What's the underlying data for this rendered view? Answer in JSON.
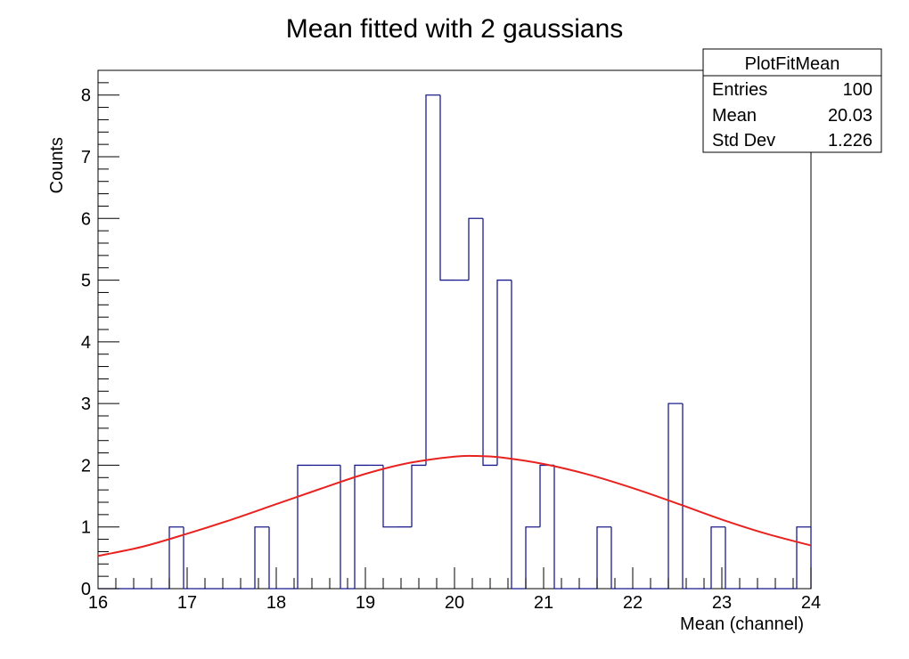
{
  "chart_data": {
    "type": "histogram",
    "title": "Mean fitted with 2 gaussians",
    "xlabel": "Mean (channel)",
    "ylabel": "Counts",
    "xlim": [
      16,
      24
    ],
    "ylim": [
      0,
      8.4
    ],
    "x_ticks": [
      "16",
      "17",
      "18",
      "19",
      "20",
      "21",
      "22",
      "23",
      "24"
    ],
    "y_ticks": [
      "0",
      "1",
      "2",
      "3",
      "4",
      "5",
      "6",
      "7",
      "8"
    ],
    "grid": false,
    "bin_edges": [
      16,
      16.16,
      16.32,
      16.48,
      16.64,
      16.8,
      16.96,
      17.12,
      17.28,
      17.44,
      17.6,
      17.76,
      17.92,
      18.08,
      18.24,
      18.4,
      18.56,
      18.72,
      18.88,
      19.04,
      19.2,
      19.36,
      19.52,
      19.68,
      19.84,
      20.0,
      20.16,
      20.32,
      20.48,
      20.64,
      20.8,
      20.96,
      21.12,
      21.28,
      21.44,
      21.6,
      21.76,
      21.92,
      22.08,
      22.24,
      22.4,
      22.56,
      22.72,
      22.88,
      23.04,
      23.2,
      23.36,
      23.52,
      23.68,
      23.84,
      24.0
    ],
    "counts": [
      0,
      0,
      0,
      0,
      0,
      1,
      0,
      0,
      0,
      0,
      0,
      1,
      0,
      0,
      2,
      2,
      2,
      0,
      2,
      2,
      1,
      1,
      2,
      8,
      5,
      5,
      6,
      2,
      5,
      0,
      1,
      2,
      0,
      0,
      0,
      1,
      0,
      0,
      0,
      0,
      3,
      0,
      0,
      1,
      0,
      0,
      0,
      0,
      0,
      1
    ],
    "fit": {
      "name": "fit",
      "color": "#e8231f",
      "points": [
        [
          16.0,
          0.53
        ],
        [
          16.5,
          0.68
        ],
        [
          17.0,
          0.89
        ],
        [
          17.5,
          1.12
        ],
        [
          18.0,
          1.37
        ],
        [
          18.5,
          1.62
        ],
        [
          19.0,
          1.86
        ],
        [
          19.5,
          2.04
        ],
        [
          20.0,
          2.14
        ],
        [
          20.25,
          2.15
        ],
        [
          20.5,
          2.13
        ],
        [
          21.0,
          2.02
        ],
        [
          21.5,
          1.85
        ],
        [
          22.0,
          1.63
        ],
        [
          22.5,
          1.38
        ],
        [
          23.0,
          1.12
        ],
        [
          23.5,
          0.89
        ],
        [
          24.0,
          0.7
        ]
      ]
    },
    "histogram_color": "#1b1b8f",
    "legend": "top-right",
    "stats": {
      "title": "PlotFitMean",
      "rows": [
        {
          "label": "Entries",
          "value": "100"
        },
        {
          "label": "Mean",
          "value": "20.03"
        },
        {
          "label": "Std Dev",
          "value": "1.226"
        }
      ]
    }
  }
}
